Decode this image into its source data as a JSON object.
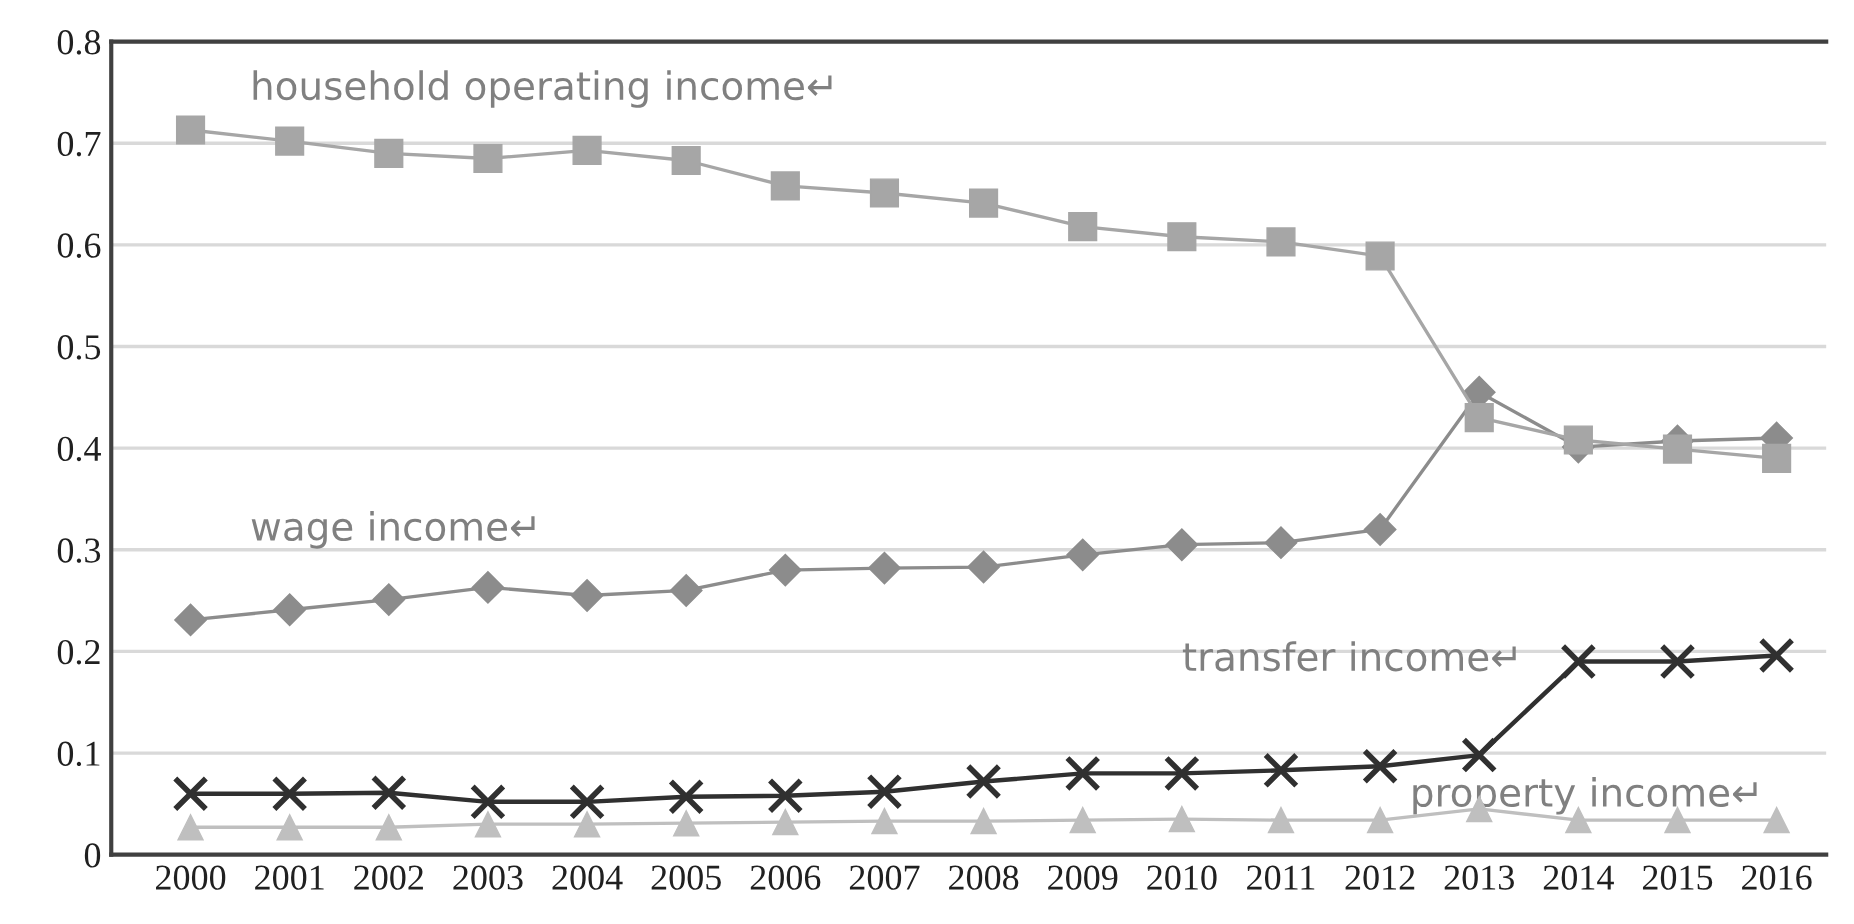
{
  "chart_data": {
    "type": "line",
    "categories": [
      "2000",
      "2001",
      "2002",
      "2003",
      "2004",
      "2005",
      "2006",
      "2007",
      "2008",
      "2009",
      "2010",
      "2011",
      "2012",
      "2013",
      "2014",
      "2015",
      "2016"
    ],
    "series": [
      {
        "name": "household operating income↵",
        "color": "#a6a6a6",
        "marker": "square",
        "values": [
          0.713,
          0.702,
          0.69,
          0.685,
          0.693,
          0.683,
          0.658,
          0.651,
          0.641,
          0.618,
          0.608,
          0.603,
          0.589,
          0.43,
          0.408,
          0.399,
          0.39
        ]
      },
      {
        "name": "wage income↵",
        "color": "#8c8c8c",
        "marker": "diamond",
        "values": [
          0.231,
          0.241,
          0.251,
          0.263,
          0.255,
          0.26,
          0.28,
          0.282,
          0.283,
          0.295,
          0.305,
          0.307,
          0.32,
          0.455,
          0.401,
          0.407,
          0.41
        ]
      },
      {
        "name": "transfer income↵",
        "color": "#303030",
        "marker": "cross",
        "values": [
          0.06,
          0.06,
          0.061,
          0.052,
          0.052,
          0.057,
          0.058,
          0.062,
          0.072,
          0.08,
          0.08,
          0.083,
          0.087,
          0.098,
          0.19,
          0.19,
          0.196
        ]
      },
      {
        "name": "property income↵",
        "color": "#bfbfbf",
        "marker": "triangle",
        "values": [
          0.027,
          0.027,
          0.027,
          0.03,
          0.03,
          0.031,
          0.032,
          0.033,
          0.033,
          0.034,
          0.035,
          0.034,
          0.034,
          0.045,
          0.034,
          0.034,
          0.034
        ]
      }
    ],
    "ylim": [
      0,
      0.8
    ],
    "yticks": [
      0,
      0.1,
      0.2,
      0.3,
      0.4,
      0.5,
      0.6,
      0.7,
      0.8
    ],
    "grid": "y",
    "legend": false,
    "line_style": "solid"
  }
}
